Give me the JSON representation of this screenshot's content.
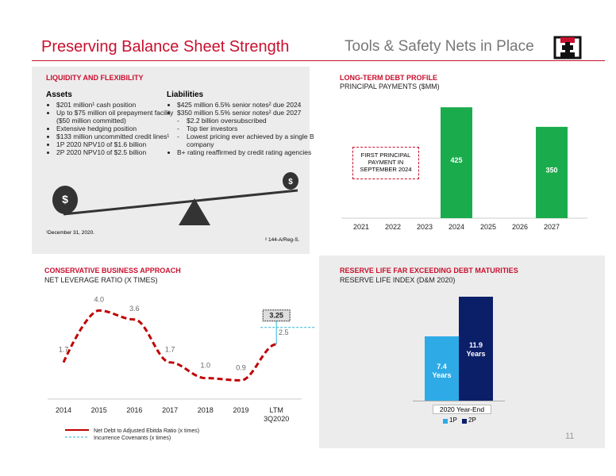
{
  "header": {
    "title": "Preserving Balance Sheet Strength",
    "subtitle": "Tools & Safety Nets in Place"
  },
  "liquidity": {
    "title": "LIQUIDITY AND FLEXIBILITY",
    "assets": {
      "heading": "Assets",
      "items": [
        "$201 million¹ cash position",
        "Up to $75 million oil prepayment facility ($50 million committed)",
        "Extensive hedging position",
        "$133 million uncommitted credit lines¹",
        "1P 2020 NPV10 of $1.6 billion",
        "2P 2020 NPV10 of $2.5 billion"
      ]
    },
    "liabilities": {
      "heading": "Liabilities",
      "items": [
        "$425 million 6.5% senior notes² due 2024",
        "$350 million 5.5% senior notes² due 2027",
        "B+ rating reaffirmed by credit rating agencies"
      ],
      "sub_items": [
        "$2.2 billion oversubscribed",
        "Top tier investors",
        "Lowest pricing ever achieved by a single B company"
      ]
    },
    "footnotes": [
      "¹December 31, 2020.",
      "² 144-A/Reg-S."
    ]
  },
  "debt_chart": {
    "type": "bar",
    "title": "LONG-TERM DEBT PROFILE",
    "subtitle": "PRINCIPAL PAYMENTS ($MM)",
    "categories": [
      "2021",
      "2022",
      "2023",
      "2024",
      "2025",
      "2026",
      "2027"
    ],
    "values": [
      null,
      null,
      null,
      425,
      null,
      null,
      350
    ],
    "color": "#1aac4c",
    "ylim": [
      0,
      450
    ],
    "annotation": "FIRST PRINCIPAL PAYMENT IN SEPTEMBER 2024"
  },
  "leverage_chart": {
    "type": "line",
    "title": "CONSERVATIVE BUSINESS APPROACH",
    "subtitle": "NET LEVERAGE RATIO (X TIMES)",
    "categories": [
      "2014",
      "2015",
      "2016",
      "2017",
      "2018",
      "2019",
      "LTM 3Q2020"
    ],
    "series": [
      {
        "name": "Net Debt to Adjusted Ebitda Ratio (x times)",
        "color": "#c00000",
        "values": [
          1.7,
          4.0,
          3.6,
          1.7,
          1.0,
          0.9,
          2.5
        ],
        "value_labels": [
          "1.7",
          "4.0",
          "3.6",
          "1.7",
          "1.0",
          "0.9",
          "2.5"
        ]
      }
    ],
    "covenant": {
      "name": "Incurrence Covenants (x times)",
      "color": "#29b6d6",
      "value": 3.25
    },
    "ylim": [
      0,
      5
    ]
  },
  "reserve_chart": {
    "type": "bar",
    "title": "RESERVE LIFE FAR EXCEEDING DEBT MATURITIES",
    "subtitle": "RESERVE LIFE INDEX (D&M 2020)",
    "categories": [
      "2020 Year-End"
    ],
    "series": [
      {
        "name": "1P",
        "color": "#2eabe6",
        "values": [
          7.4
        ],
        "value_labels": [
          "7.4 Years"
        ]
      },
      {
        "name": "2P",
        "color": "#0b1f69",
        "values": [
          11.9
        ],
        "value_labels": [
          "11.9 Years"
        ]
      }
    ],
    "ylim": [
      0,
      13
    ]
  },
  "page_number": "11"
}
